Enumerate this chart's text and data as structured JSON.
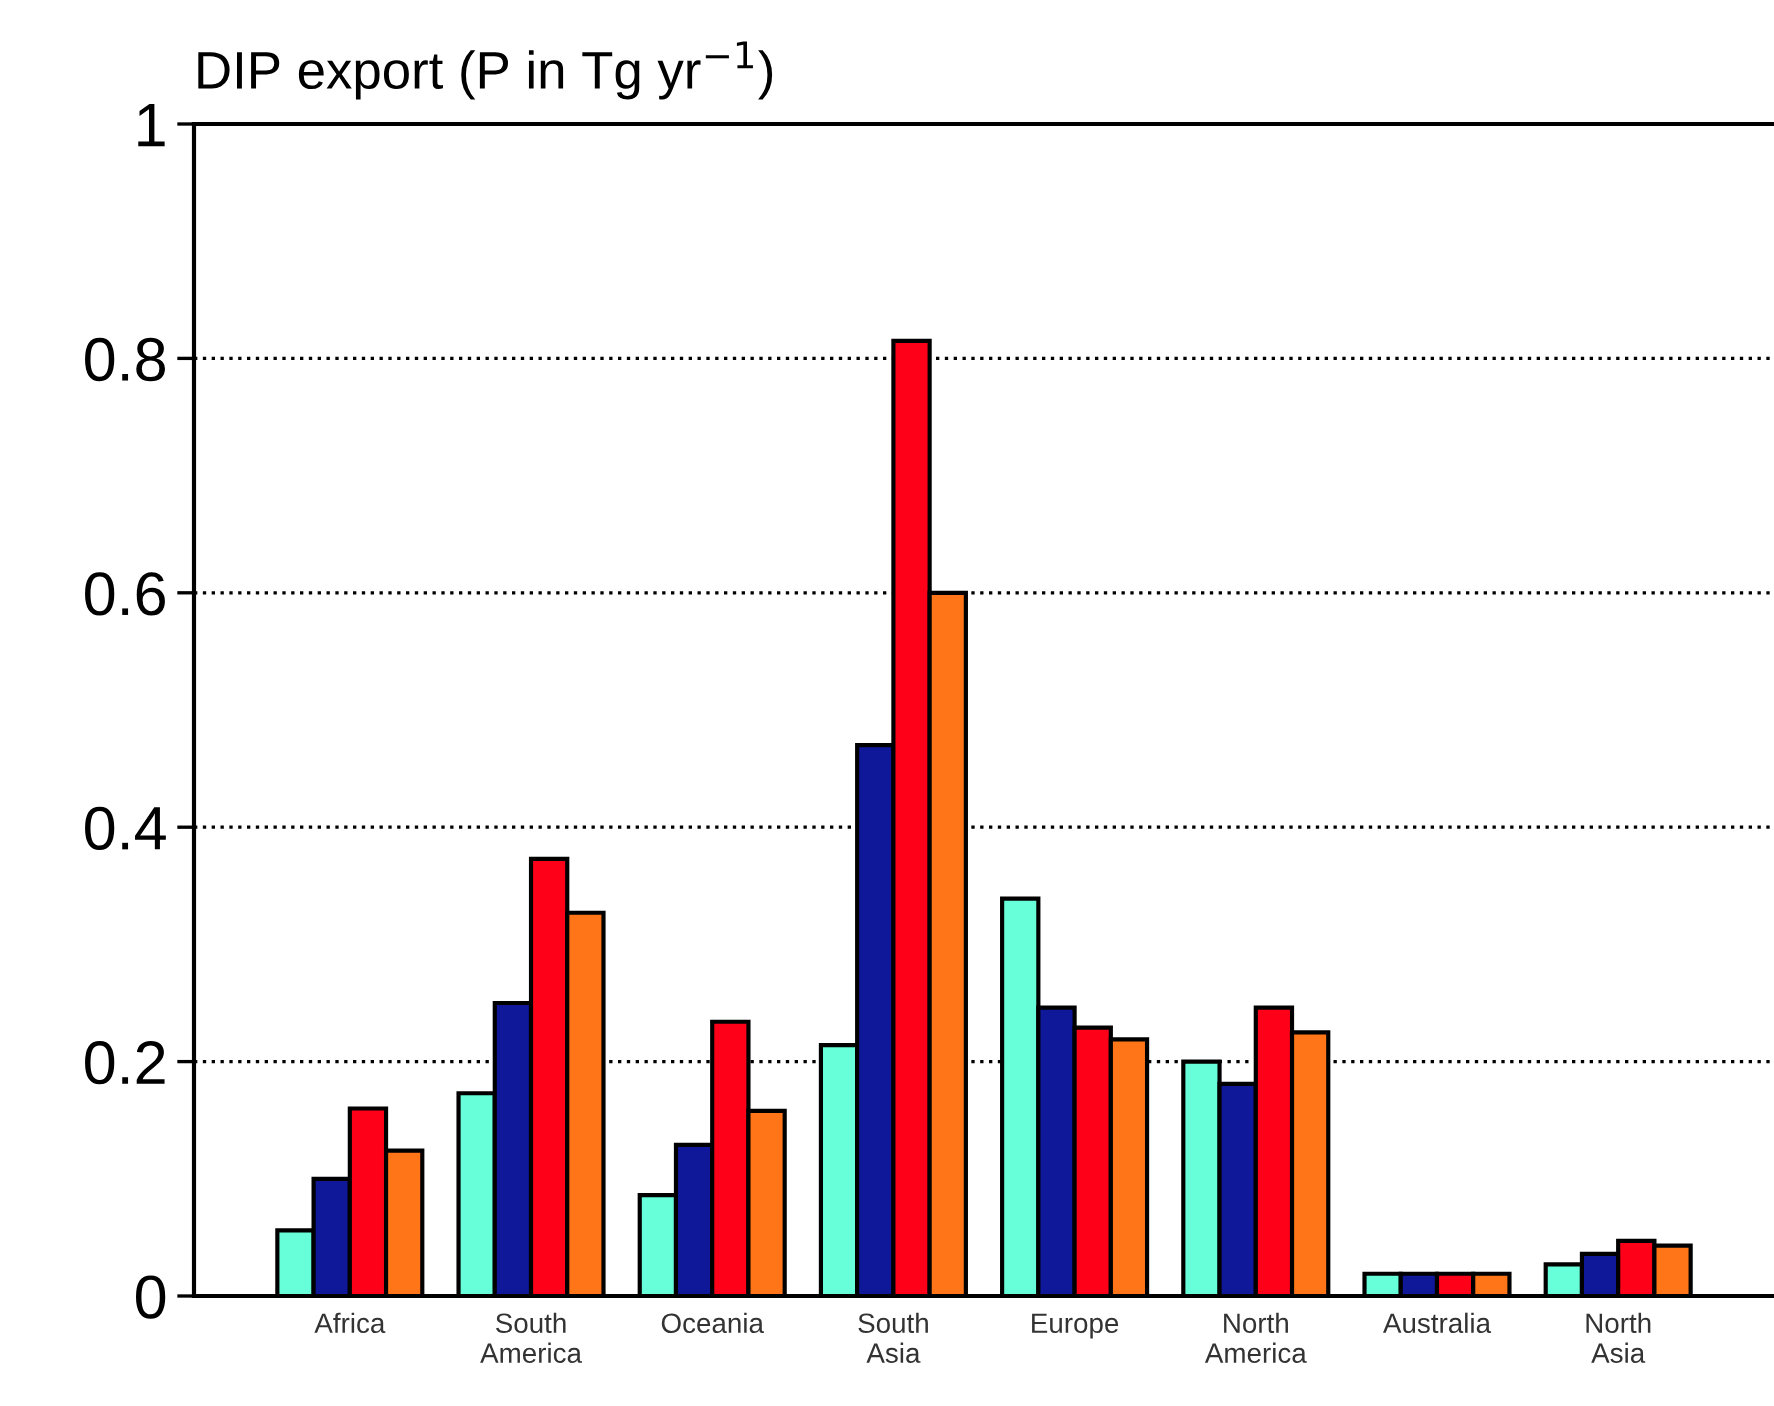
{
  "chart_data": {
    "type": "bar",
    "title": "DIP export (P in Tg yr$^{−1}$)",
    "categories": [
      "Africa",
      "South\nAmerica",
      "Oceania",
      "South\nAsia",
      "Europe",
      "North\nAmerica",
      "Australia",
      "North\nAsia"
    ],
    "series": [
      {
        "color": "#66ffd9",
        "values": [
          0.056,
          0.173,
          0.086,
          0.214,
          0.339,
          0.2,
          0.019,
          0.027
        ]
      },
      {
        "color": "#10189a",
        "values": [
          0.1,
          0.25,
          0.129,
          0.47,
          0.246,
          0.181,
          0.019,
          0.036
        ]
      },
      {
        "color": "#ff0019",
        "values": [
          0.16,
          0.373,
          0.234,
          0.815,
          0.229,
          0.246,
          0.019,
          0.047
        ]
      },
      {
        "color": "#ff7518",
        "values": [
          0.124,
          0.327,
          0.158,
          0.6,
          0.219,
          0.225,
          0.019,
          0.043
        ]
      }
    ],
    "ylim": [
      0,
      1
    ],
    "yticks": [
      0,
      0.2,
      0.4,
      0.6,
      0.8,
      1
    ],
    "grid": "y",
    "line_style": "dotted"
  }
}
